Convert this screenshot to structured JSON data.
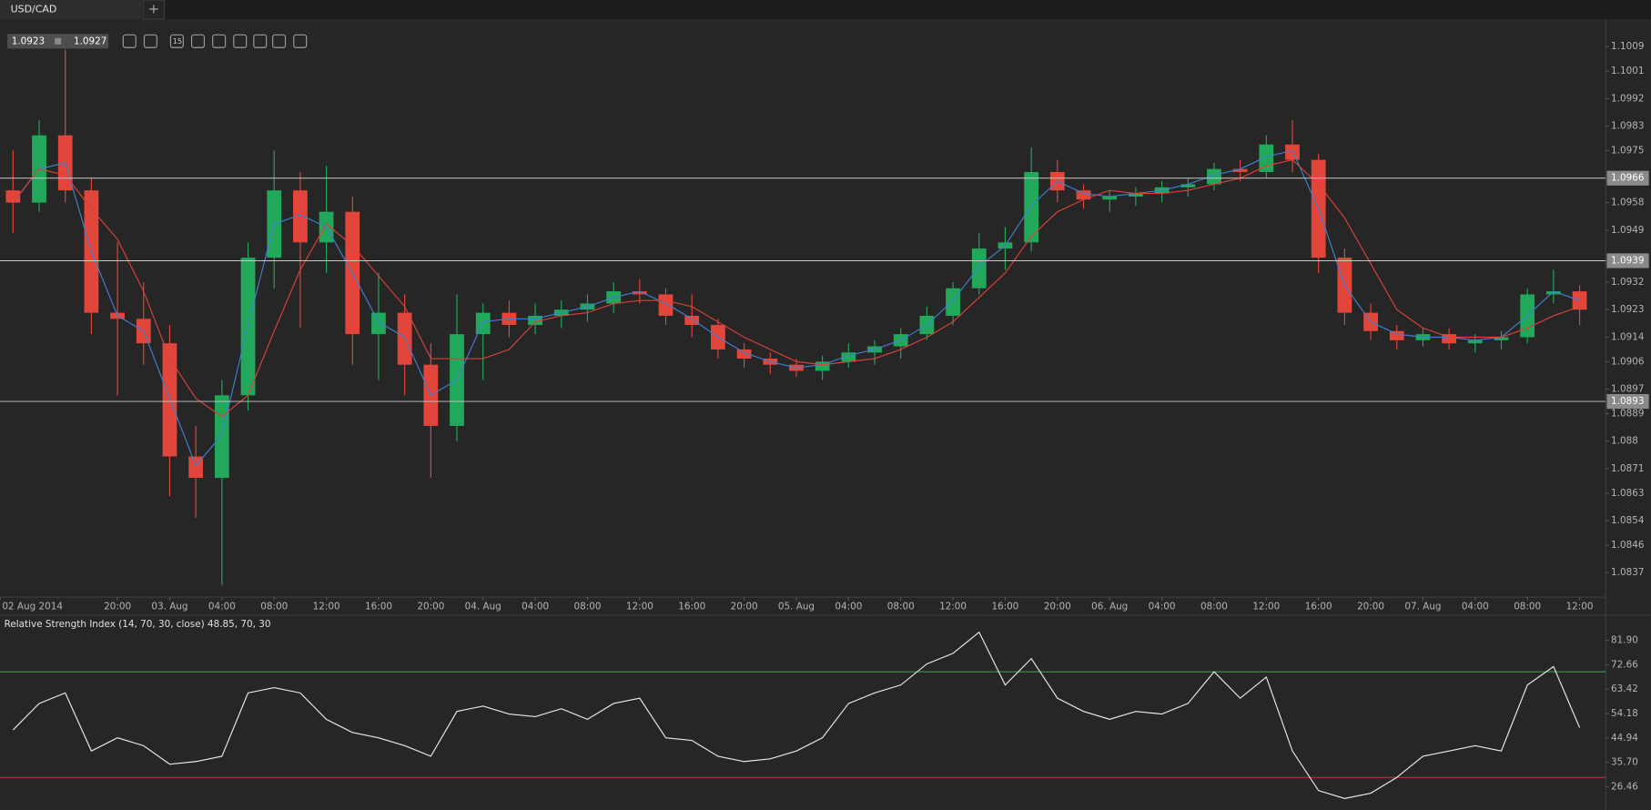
{
  "header": {
    "symbol": "USD/CAD",
    "bid": "1.0923",
    "ask": "1.0927",
    "interval": "15"
  },
  "chart_data": [
    {
      "type": "candlestick",
      "x": [
        0,
        2,
        4,
        6,
        8,
        10,
        12,
        14,
        16,
        18,
        20,
        22,
        24,
        26,
        28,
        30,
        32,
        34,
        36,
        38,
        40,
        42,
        44,
        46,
        48,
        50,
        52,
        54,
        56,
        58,
        60,
        62,
        64,
        66,
        68,
        70,
        72,
        74,
        76,
        78,
        80,
        82,
        84,
        86,
        88,
        90,
        92,
        94,
        96,
        98,
        100,
        102,
        104,
        106,
        108,
        110,
        112,
        114,
        116,
        118,
        120
      ],
      "open": [
        1.0962,
        1.0958,
        1.098,
        1.0962,
        1.0922,
        1.092,
        1.0912,
        1.0875,
        1.0868,
        1.0895,
        1.094,
        1.0962,
        1.0945,
        1.0955,
        1.0915,
        1.0922,
        1.0905,
        1.0885,
        1.0915,
        1.0922,
        1.0918,
        1.0921,
        1.0923,
        1.0925,
        1.0929,
        1.0928,
        1.0921,
        1.0918,
        1.091,
        1.0907,
        1.0905,
        1.0903,
        1.0906,
        1.0909,
        1.0911,
        1.0915,
        1.0921,
        1.093,
        1.0943,
        1.0945,
        1.0968,
        1.0962,
        1.0959,
        1.096,
        1.0961,
        1.0963,
        1.0964,
        1.0969,
        1.0968,
        1.0977,
        1.0972,
        1.094,
        1.0922,
        1.0916,
        1.0913,
        1.0915,
        1.0912,
        1.0913,
        1.0914,
        1.0928,
        1.0929
      ],
      "high": [
        1.0975,
        1.0985,
        1.1008,
        1.0966,
        1.0945,
        1.0932,
        1.0918,
        1.0885,
        1.09,
        1.0945,
        1.0975,
        1.0968,
        1.097,
        1.096,
        1.0935,
        1.0928,
        1.0912,
        1.0928,
        1.0925,
        1.0926,
        1.0925,
        1.0926,
        1.0928,
        1.0932,
        1.0933,
        1.093,
        1.0928,
        1.092,
        1.0912,
        1.0909,
        1.0907,
        1.0908,
        1.0912,
        1.0913,
        1.0917,
        1.0924,
        1.0932,
        1.0948,
        1.095,
        1.0976,
        1.0972,
        1.0964,
        1.0962,
        1.0963,
        1.0965,
        1.0966,
        1.0971,
        1.0972,
        1.098,
        1.0985,
        1.0974,
        1.0943,
        1.0925,
        1.0918,
        1.0917,
        1.0917,
        1.0915,
        1.0916,
        1.093,
        1.0936,
        1.0931
      ],
      "low": [
        1.0948,
        1.0955,
        1.0958,
        1.0915,
        1.0895,
        1.0905,
        1.0862,
        1.0855,
        1.0833,
        1.089,
        1.093,
        1.0917,
        1.0935,
        1.0905,
        1.09,
        1.0895,
        1.0868,
        1.088,
        1.09,
        1.0914,
        1.0915,
        1.0917,
        1.0919,
        1.0922,
        1.0925,
        1.0918,
        1.0914,
        1.0907,
        1.0904,
        1.0902,
        1.0901,
        1.09,
        1.0904,
        1.0905,
        1.0907,
        1.0913,
        1.0918,
        1.0928,
        1.0936,
        1.0942,
        1.0958,
        1.0956,
        1.0955,
        1.0957,
        1.0958,
        1.096,
        1.0962,
        1.0965,
        1.0966,
        1.0968,
        1.0935,
        1.0918,
        1.0913,
        1.091,
        1.0911,
        1.091,
        1.0909,
        1.091,
        1.0912,
        1.0925,
        1.0918
      ],
      "close": [
        1.0958,
        1.098,
        1.0962,
        1.0922,
        1.092,
        1.0912,
        1.0875,
        1.0868,
        1.0895,
        1.094,
        1.0962,
        1.0945,
        1.0955,
        1.0915,
        1.0922,
        1.0905,
        1.0885,
        1.0915,
        1.0922,
        1.0918,
        1.0921,
        1.0923,
        1.0925,
        1.0929,
        1.0928,
        1.0921,
        1.0918,
        1.091,
        1.0907,
        1.0905,
        1.0903,
        1.0906,
        1.0909,
        1.0911,
        1.0915,
        1.0921,
        1.093,
        1.0943,
        1.0945,
        1.0968,
        1.0962,
        1.0959,
        1.096,
        1.0961,
        1.0963,
        1.0964,
        1.0969,
        1.0968,
        1.0977,
        1.0972,
        1.094,
        1.0922,
        1.0916,
        1.0913,
        1.0915,
        1.0912,
        1.0913,
        1.0914,
        1.0928,
        1.0929,
        1.0923
      ],
      "up_color": "#21a85a",
      "down_color": "#e2453a",
      "lines": [
        {
          "color": "#3f7fd0",
          "values": [
            1.0958,
            1.0969,
            1.0971,
            1.0942,
            1.0921,
            1.0916,
            1.0894,
            1.0872,
            1.0882,
            1.0918,
            1.0951,
            1.0954,
            1.095,
            1.0935,
            1.0919,
            1.0914,
            1.0895,
            1.09,
            1.0919,
            1.092,
            1.092,
            1.0922,
            1.0924,
            1.0927,
            1.0929,
            1.0925,
            1.092,
            1.0914,
            1.0909,
            1.0906,
            1.0904,
            1.0905,
            1.0908,
            1.091,
            1.0913,
            1.0918,
            1.0926,
            1.0937,
            1.0944,
            1.0957,
            1.0965,
            1.0961,
            1.096,
            1.0961,
            1.0962,
            1.0964,
            1.0967,
            1.0969,
            1.0973,
            1.0975,
            1.0956,
            1.0931,
            1.0919,
            1.0915,
            1.0914,
            1.0914,
            1.0913,
            1.0914,
            1.0921,
            1.0929,
            1.0926
          ]
        },
        {
          "color": "#d9413a",
          "values": [
            1.0958,
            1.0969,
            1.0967,
            1.0956,
            1.0946,
            1.0929,
            1.0907,
            1.0894,
            1.0888,
            1.0895,
            1.0916,
            1.0936,
            1.0951,
            1.0944,
            1.0934,
            1.0924,
            1.0907,
            1.0907,
            1.0907,
            1.091,
            1.0919,
            1.0921,
            1.0922,
            1.0925,
            1.0926,
            1.0926,
            1.0924,
            1.0919,
            1.0914,
            1.091,
            1.0906,
            1.0905,
            1.0906,
            1.0907,
            1.091,
            1.0914,
            1.0919,
            1.0927,
            1.0935,
            1.0947,
            1.0955,
            1.0959,
            1.0962,
            1.0961,
            1.0961,
            1.0962,
            1.0964,
            1.0966,
            1.097,
            1.0972,
            1.0964,
            1.0953,
            1.0938,
            1.0923,
            1.0917,
            1.0914,
            1.0914,
            1.0914,
            1.0917,
            1.0921,
            1.0924
          ]
        }
      ],
      "hlines": [
        1.0966,
        1.0939,
        1.0893
      ],
      "hline_color": "#c8c8c8",
      "xlim": [
        -1,
        122
      ],
      "ylim": [
        1.0829,
        1.1018
      ],
      "yticks": [
        1.1009,
        1.1001,
        1.0992,
        1.0983,
        1.0975,
        1.0958,
        1.0949,
        1.0932,
        1.0923,
        1.0914,
        1.0906,
        1.0897,
        1.0889,
        1.088,
        1.0871,
        1.0863,
        1.0854,
        1.0846,
        1.0837
      ],
      "xticks": [
        {
          "value": -1,
          "label": "02 Aug 2014"
        },
        {
          "value": 8,
          "label": "20:00"
        },
        {
          "value": 12,
          "label": "03. Aug"
        },
        {
          "value": 16,
          "label": "04:00"
        },
        {
          "value": 20,
          "label": "08:00"
        },
        {
          "value": 24,
          "label": "12:00"
        },
        {
          "value": 28,
          "label": "16:00"
        },
        {
          "value": 32,
          "label": "20:00"
        },
        {
          "value": 36,
          "label": "04. Aug"
        },
        {
          "value": 40,
          "label": "04:00"
        },
        {
          "value": 44,
          "label": "08:00"
        },
        {
          "value": 48,
          "label": "12:00"
        },
        {
          "value": 52,
          "label": "16:00"
        },
        {
          "value": 56,
          "label": "20:00"
        },
        {
          "value": 60,
          "label": "05. Aug"
        },
        {
          "value": 64,
          "label": "04:00"
        },
        {
          "value": 68,
          "label": "08:00"
        },
        {
          "value": 72,
          "label": "12:00"
        },
        {
          "value": 76,
          "label": "16:00"
        },
        {
          "value": 80,
          "label": "20:00"
        },
        {
          "value": 84,
          "label": "06. Aug"
        },
        {
          "value": 88,
          "label": "04:00"
        },
        {
          "value": 92,
          "label": "08:00"
        },
        {
          "value": 96,
          "label": "12:00"
        },
        {
          "value": 100,
          "label": "16:00"
        },
        {
          "value": 104,
          "label": "20:00"
        },
        {
          "value": 108,
          "label": "07. Aug"
        },
        {
          "value": 112,
          "label": "04:00"
        },
        {
          "value": 116,
          "label": "08:00"
        },
        {
          "value": 120,
          "label": "12:00"
        }
      ]
    },
    {
      "type": "line",
      "title": "Relative Strength Index (14, 70, 30, close) 48.85, 70, 30",
      "x": [
        0,
        2,
        4,
        6,
        8,
        10,
        12,
        14,
        16,
        18,
        20,
        22,
        24,
        26,
        28,
        30,
        32,
        34,
        36,
        38,
        40,
        42,
        44,
        46,
        48,
        50,
        52,
        54,
        56,
        58,
        60,
        62,
        64,
        66,
        68,
        70,
        72,
        74,
        76,
        78,
        80,
        82,
        84,
        86,
        88,
        90,
        92,
        94,
        96,
        98,
        100,
        102,
        104,
        106,
        108,
        110,
        112,
        114,
        116,
        118,
        120
      ],
      "values": [
        48,
        58,
        62,
        40,
        45,
        42,
        35,
        36,
        38,
        62,
        64,
        62,
        52,
        47,
        45,
        42,
        38,
        55,
        57,
        54,
        53,
        56,
        52,
        58,
        60,
        45,
        44,
        38,
        36,
        37,
        40,
        45,
        58,
        62,
        65,
        73,
        77,
        85,
        65,
        75,
        60,
        55,
        52,
        55,
        54,
        58,
        70,
        60,
        68,
        40,
        25,
        22,
        24,
        30,
        38,
        40,
        42,
        40,
        65,
        72,
        48.85
      ],
      "color": "#e8e8e8",
      "levels": [
        {
          "value": 70,
          "color": "#4aa14e"
        },
        {
          "value": 30,
          "color": "#d9413a"
        }
      ],
      "xlim": [
        -1,
        122
      ],
      "ylim": [
        17.7,
        91.1
      ],
      "yticks": [
        {
          "value": 81.9,
          "label": "81.90"
        },
        72.66,
        63.42,
        54.18,
        44.94,
        {
          "value": 35.7,
          "label": "35.70"
        },
        26.46
      ]
    }
  ]
}
